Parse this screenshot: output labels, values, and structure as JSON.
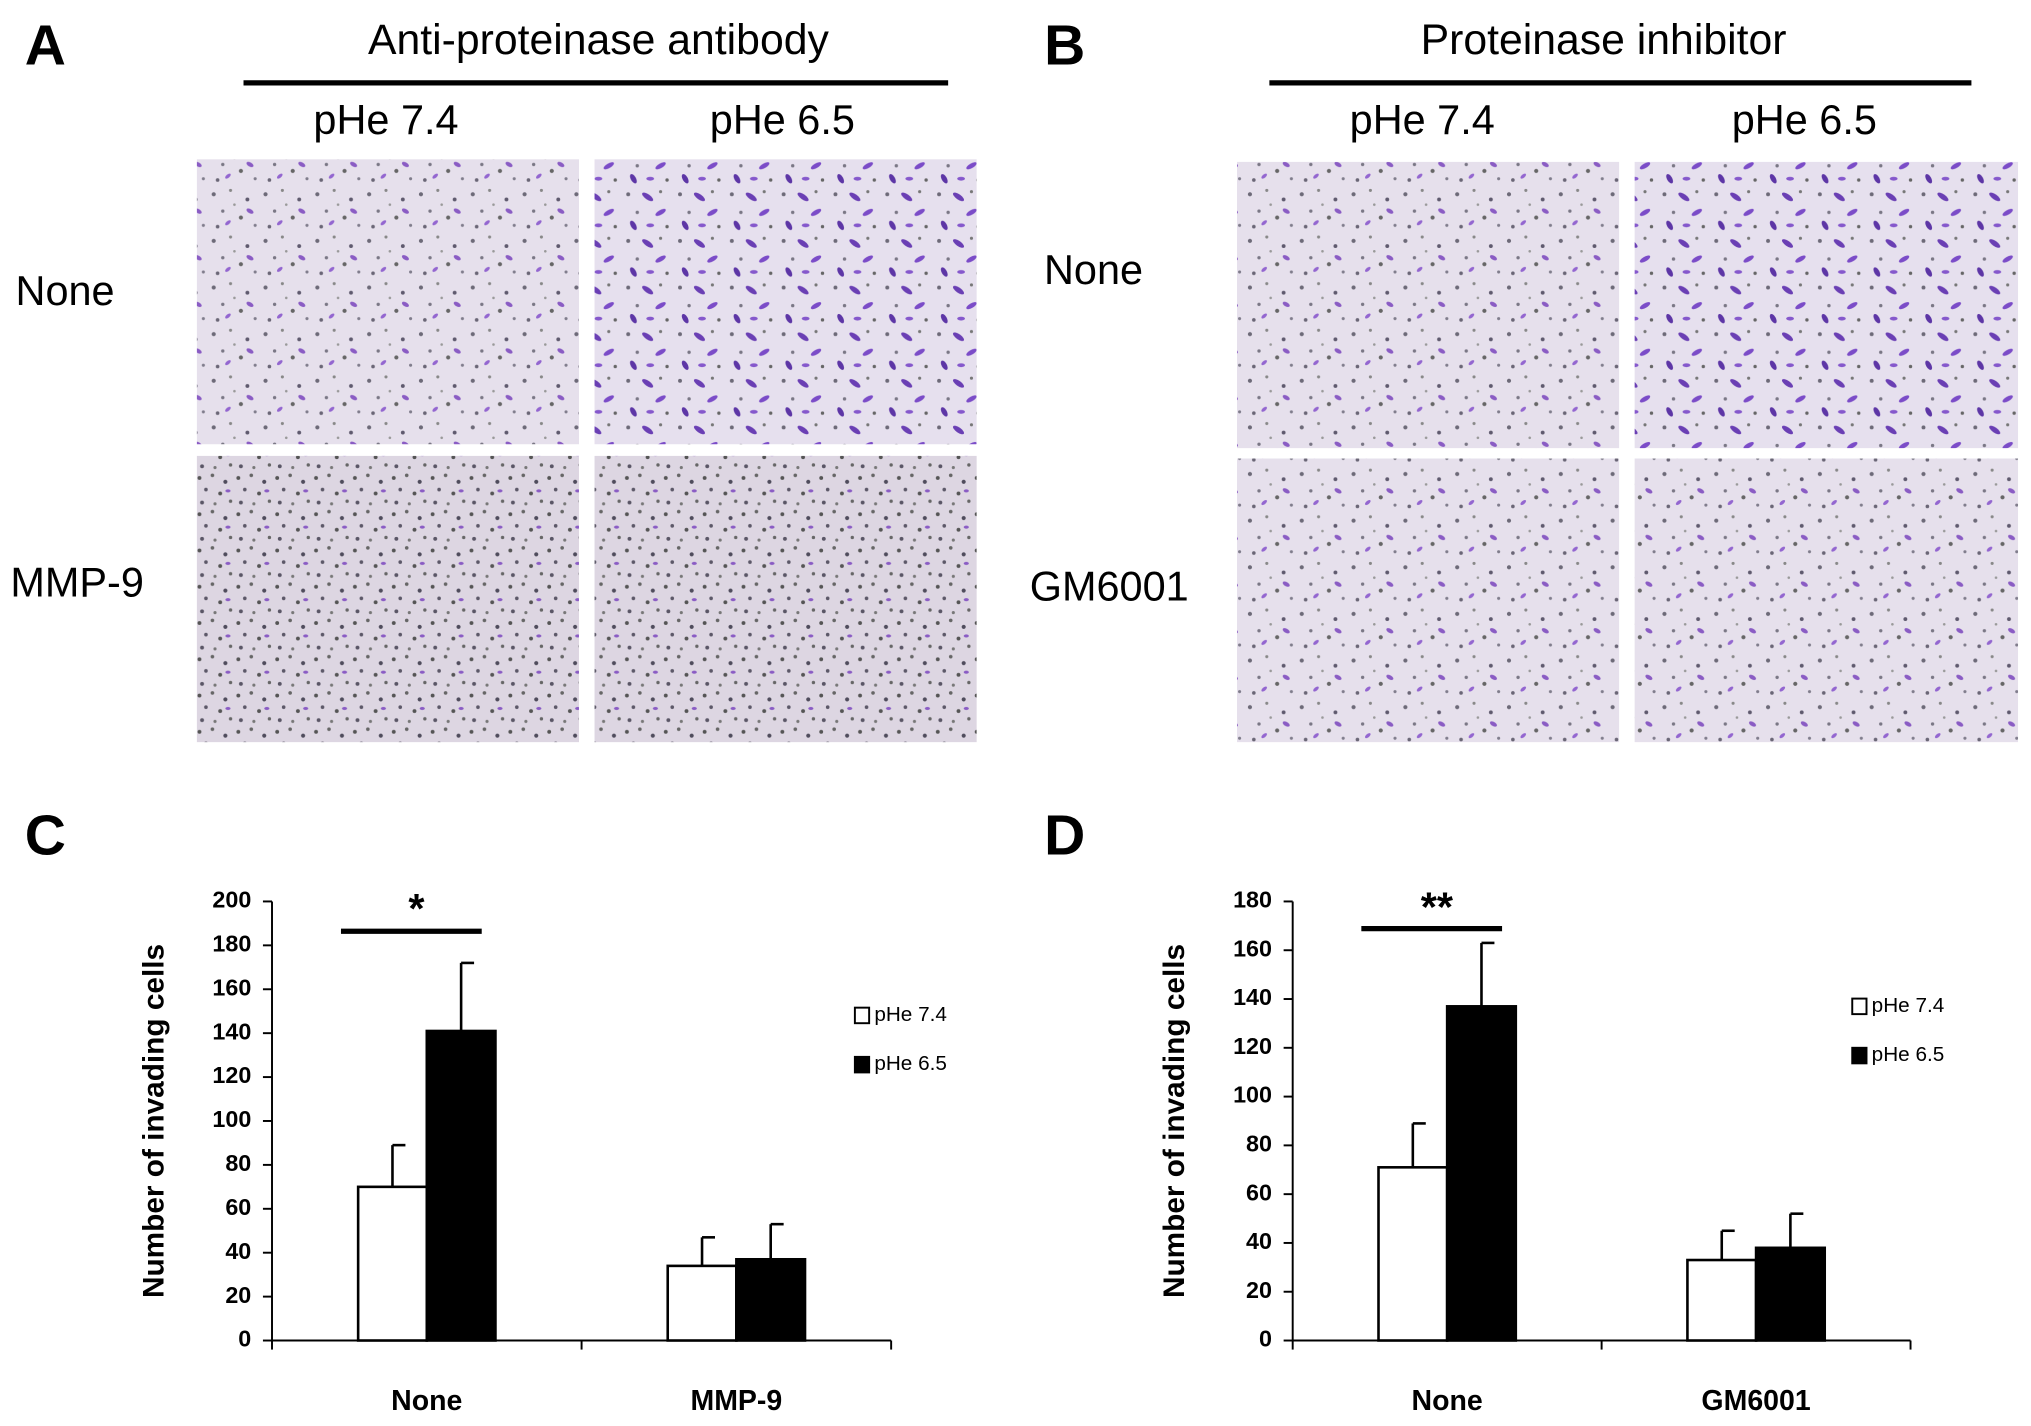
{
  "panels": [
    {
      "letter": "A",
      "title": "Anti-proteinase antibody",
      "columns": [
        "pHe 7.4",
        "pHe 6.5"
      ],
      "rows": [
        "None",
        "MMP-9"
      ]
    },
    {
      "letter": "B",
      "title": "Proteinase inhibitor",
      "columns": [
        "pHe 7.4",
        "pHe 6.5"
      ],
      "rows": [
        "None",
        "GM6001"
      ]
    }
  ],
  "chart_data": [
    {
      "type": "bar",
      "letter": "C",
      "y_label": "Number of invading cells",
      "categories": [
        "None",
        "MMP-9"
      ],
      "series": [
        {
          "name": "pHe 7.4",
          "color": "#ffffff",
          "values": [
            70,
            34
          ],
          "errors": [
            19,
            13
          ]
        },
        {
          "name": "pHe 6.5",
          "color": "#000000",
          "values": [
            141,
            37
          ],
          "errors": [
            31,
            16
          ]
        }
      ],
      "ylim": [
        0,
        200
      ],
      "yticks": [
        0,
        20,
        40,
        60,
        80,
        100,
        120,
        140,
        160,
        180,
        200
      ],
      "annotation": "*"
    },
    {
      "type": "bar",
      "letter": "D",
      "y_label": "Number of invading cells",
      "categories": [
        "None",
        "GM6001"
      ],
      "series": [
        {
          "name": "pHe 7.4",
          "color": "#ffffff",
          "values": [
            71,
            33
          ],
          "errors": [
            18,
            12
          ]
        },
        {
          "name": "pHe 6.5",
          "color": "#000000",
          "values": [
            137,
            38
          ],
          "errors": [
            26,
            14
          ]
        }
      ],
      "ylim": [
        0,
        180
      ],
      "yticks": [
        0,
        20,
        40,
        60,
        80,
        100,
        120,
        140,
        160,
        180
      ],
      "annotation": "**"
    }
  ]
}
